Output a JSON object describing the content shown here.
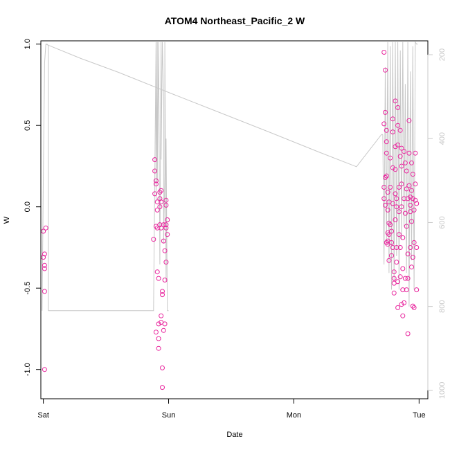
{
  "chart_data": {
    "type": "scatter",
    "title": "ATOM4 Northeast_Pacific_2 W",
    "xlabel": "Date",
    "ylabel": "W",
    "x_ticks": [
      {
        "label": "Sat",
        "day": 0
      },
      {
        "label": "Sun",
        "day": 1
      },
      {
        "label": "Mon",
        "day": 2
      },
      {
        "label": "Tue",
        "day": 3
      }
    ],
    "xlim_days": [
      -0.02,
      3.07
    ],
    "ylim": [
      -1.18,
      1.02
    ],
    "y_ticks": [
      "-1.0",
      "-0.5",
      "0.0",
      "0.5",
      "1.0"
    ],
    "y_tick_values": [
      -1.0,
      -0.5,
      0.0,
      0.5,
      1.0
    ],
    "y2_ticks": [
      "200",
      "400",
      "600",
      "800",
      "1000"
    ],
    "y2_tick_values": [
      200,
      400,
      600,
      800,
      1000
    ],
    "y2lim": [
      1020,
      167
    ],
    "grid": false,
    "legend": "none",
    "colors": {
      "points": "#e8239c",
      "depth_line": "#c8c8c8"
    },
    "series": [
      {
        "role": "points",
        "days": [
          0.0,
          0.0,
          0.01,
          0.01,
          0.01,
          0.01,
          0.01,
          0.02,
          0.88,
          0.89,
          0.89,
          0.89,
          0.9,
          0.9,
          0.9,
          0.9,
          0.91,
          0.91,
          0.91,
          0.91,
          0.92,
          0.92,
          0.92,
          0.92,
          0.93,
          0.93,
          0.93,
          0.93,
          0.94,
          0.94,
          0.94,
          0.94,
          0.94,
          0.95,
          0.95,
          0.95,
          0.95,
          0.96,
          0.96,
          0.96,
          0.97,
          0.97,
          0.97,
          0.98,
          0.98,
          0.98,
          0.98,
          0.98,
          0.99,
          0.99,
          2.72,
          2.72,
          2.72,
          2.72,
          2.73,
          2.73,
          2.73,
          2.73,
          2.74,
          2.74,
          2.74,
          2.74,
          2.74,
          2.75,
          2.75,
          2.75,
          2.75,
          2.75,
          2.76,
          2.76,
          2.76,
          2.76,
          2.77,
          2.77,
          2.77,
          2.78,
          2.78,
          2.78,
          2.79,
          2.79,
          2.79,
          2.79,
          2.79,
          2.8,
          2.8,
          2.8,
          2.8,
          2.81,
          2.81,
          2.81,
          2.81,
          2.81,
          2.82,
          2.82,
          2.82,
          2.82,
          2.83,
          2.83,
          2.83,
          2.83,
          2.83,
          2.84,
          2.84,
          2.84,
          2.85,
          2.85,
          2.85,
          2.85,
          2.86,
          2.86,
          2.86,
          2.86,
          2.86,
          2.87,
          2.87,
          2.87,
          2.87,
          2.88,
          2.88,
          2.88,
          2.89,
          2.89,
          2.89,
          2.9,
          2.9,
          2.9,
          2.9,
          2.91,
          2.91,
          2.91,
          2.91,
          2.92,
          2.92,
          2.92,
          2.93,
          2.93,
          2.93,
          2.93,
          2.94,
          2.94,
          2.94,
          2.94,
          2.95,
          2.95,
          2.95,
          2.95,
          2.96,
          2.96,
          2.96,
          2.97,
          2.97,
          2.97,
          2.98,
          2.98,
          2.98
        ],
        "values": [
          -0.15,
          -0.31,
          -0.29,
          -0.36,
          -0.38,
          -0.52,
          -1.0,
          -0.13,
          -0.2,
          0.08,
          0.22,
          0.29,
          0.16,
          -0.12,
          -0.77,
          0.14,
          -0.13,
          -0.02,
          0.03,
          -0.4,
          -0.44,
          -0.87,
          -0.72,
          -0.81,
          0.05,
          0.09,
          0.0,
          -0.11,
          -0.71,
          0.1,
          -0.13,
          0.03,
          -0.67,
          -0.52,
          -0.54,
          -0.99,
          -1.11,
          -0.76,
          -0.11,
          -0.21,
          -0.72,
          -0.27,
          -0.45,
          0.04,
          -0.34,
          0.01,
          -0.11,
          -0.13,
          -0.17,
          -0.08,
          0.95,
          0.51,
          0.12,
          0.05,
          0.01,
          0.84,
          0.58,
          0.18,
          -0.22,
          0.47,
          0.4,
          0.33,
          0.19,
          0.09,
          -0.02,
          -0.16,
          -0.21,
          -0.23,
          0.03,
          -0.1,
          -0.17,
          -0.33,
          -0.11,
          0.12,
          0.3,
          -0.15,
          -0.22,
          -0.3,
          0.54,
          0.46,
          0.24,
          0.02,
          -0.25,
          -0.44,
          -0.47,
          -0.4,
          -0.53,
          0.65,
          0.37,
          0.23,
          0.08,
          -0.08,
          0.05,
          0.0,
          -0.25,
          -0.34,
          -0.46,
          -0.62,
          0.61,
          0.5,
          0.38,
          0.12,
          -0.03,
          -0.17,
          0.47,
          0.31,
          -0.25,
          -0.43,
          -0.6,
          0.36,
          0.25,
          0.14,
          0.0,
          -0.19,
          -0.38,
          -0.51,
          -0.67,
          -0.59,
          0.34,
          0.05,
          -0.04,
          -0.44,
          0.27,
          0.11,
          -0.12,
          -0.51,
          0.22,
          0.05,
          -0.29,
          -0.44,
          -0.78,
          0.53,
          0.33,
          0.13,
          0.06,
          0.01,
          -0.03,
          -0.25,
          -0.37,
          0.27,
          0.1,
          -0.09,
          -0.31,
          -0.61,
          0.2,
          0.05,
          -0.02,
          -0.22,
          -0.62,
          0.33,
          0.14,
          0.04,
          0.02,
          -0.25,
          -0.51
        ]
      },
      {
        "role": "depth_line",
        "axis": "right",
        "segments": [
          {
            "days": [
              -0.01,
              0.0,
              0.01,
              0.02,
              0.03,
              0.04,
              0.04,
              0.05,
              0.3,
              0.6,
              0.88,
              0.9,
              0.9,
              0.91,
              0.91,
              0.92,
              0.93,
              0.94,
              0.94,
              0.95,
              0.96,
              0.96,
              0.97,
              0.97,
              0.98,
              0.98,
              0.99,
              1.0
            ],
            "depths": [
              810,
              490,
              220,
              175,
              175,
              178,
              810,
              810,
              810,
              810,
              810,
              170,
              550,
              170,
              500,
              170,
              700,
              170,
              450,
              170,
              300,
              650,
              480,
              170,
              740,
              400,
              810,
              810
            ]
          },
          {
            "days": [
              0.02,
              0.3,
              0.6,
              1.0,
              1.4,
              1.8,
              2.2,
              2.5,
              2.7,
              2.71
            ],
            "depths": [
              175,
              209,
              242,
              290,
              337,
              384,
              432,
              467,
              390,
              390
            ]
          },
          {
            "days": [
              2.71,
              2.72,
              2.73,
              2.74,
              2.75,
              2.76,
              2.77,
              2.78,
              2.79,
              2.8,
              2.81,
              2.82,
              2.83,
              2.84,
              2.85,
              2.86,
              2.87,
              2.88,
              2.89,
              2.9,
              2.91,
              2.92,
              2.93,
              2.94,
              2.95,
              2.96,
              2.97,
              2.98,
              2.99
            ],
            "depths": [
              390,
              700,
              230,
              650,
              170,
              720,
              180,
              760,
              170,
              740,
              170,
              680,
              170,
              760,
              190,
              640,
              170,
              610,
              270,
              720,
              170,
              800,
              240,
              690,
              180,
              760,
              170,
              175,
              175
            ]
          }
        ]
      }
    ]
  }
}
